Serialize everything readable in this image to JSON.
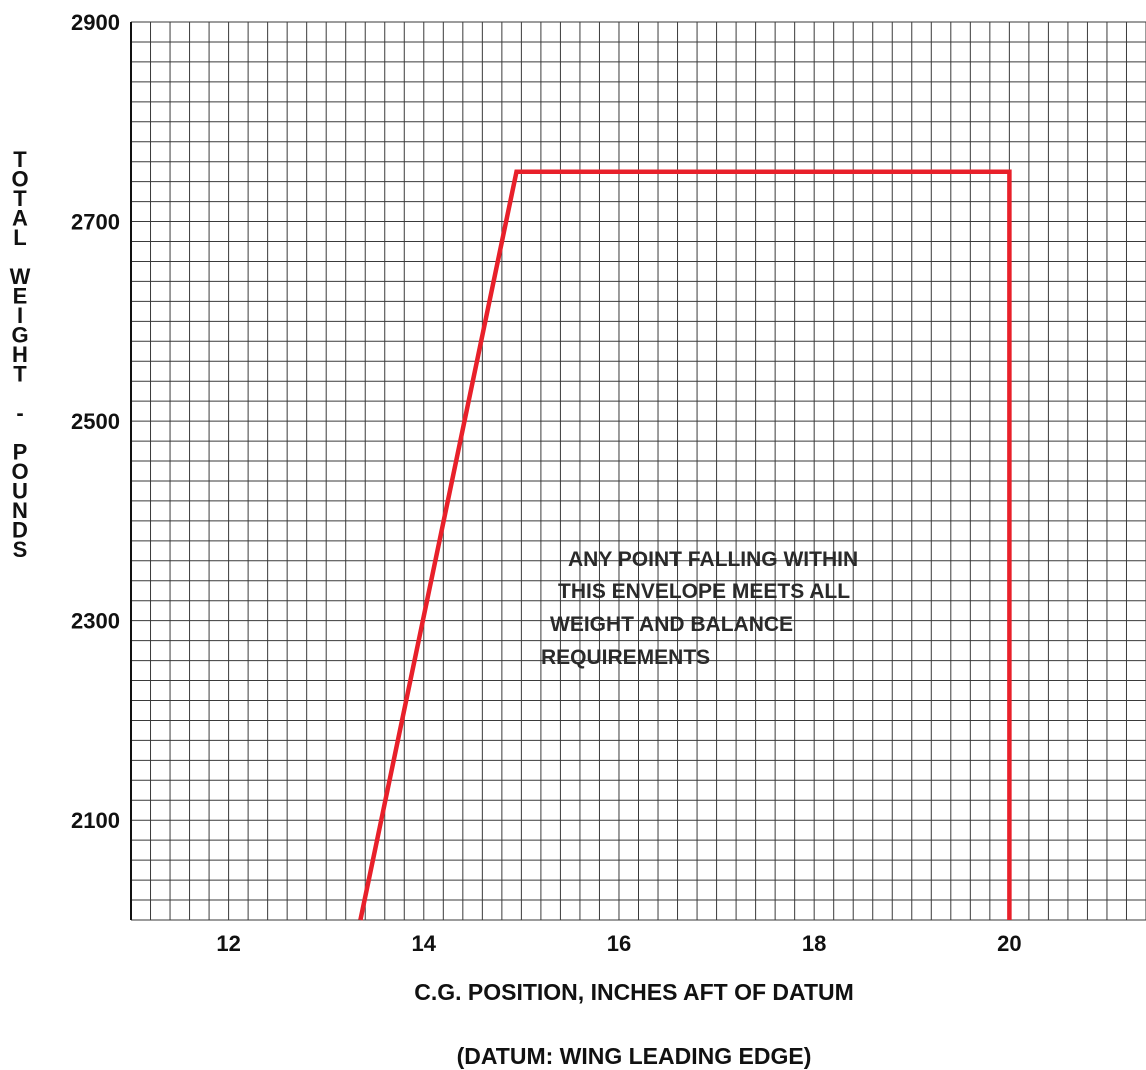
{
  "chart_data": {
    "type": "line",
    "xlabel": "C.G. POSITION, INCHES AFT OF DATUM",
    "subtitle": "(DATUM: WING LEADING EDGE)",
    "ylabel": "TOTAL WEIGHT - POUNDS",
    "xlim": [
      11,
      21.4
    ],
    "ylim": [
      2000,
      2900
    ],
    "x_ticks": [
      12,
      14,
      16,
      18,
      20
    ],
    "y_ticks": [
      2100,
      2300,
      2500,
      2700,
      2900
    ],
    "x_tick_labels": [
      "12",
      "14",
      "16",
      "18",
      "20"
    ],
    "y_tick_labels": [
      "2100",
      "2300",
      "2500",
      "2700",
      "2900"
    ],
    "grid": true,
    "series": [
      {
        "x": [
          13.35,
          14.95,
          20.0,
          20.0
        ],
        "y": [
          2000,
          2750,
          2750,
          2000
        ]
      }
    ],
    "annotation_lines": [
      "ANY POINT FALLING WITHIN",
      "THIS ENVELOPE MEETS ALL",
      "WEIGHT AND BALANCE",
      "REQUIREMENTS"
    ],
    "colors": {
      "envelope": "#e8202a",
      "grid": "#3a3a3a",
      "text": "#111111"
    }
  }
}
